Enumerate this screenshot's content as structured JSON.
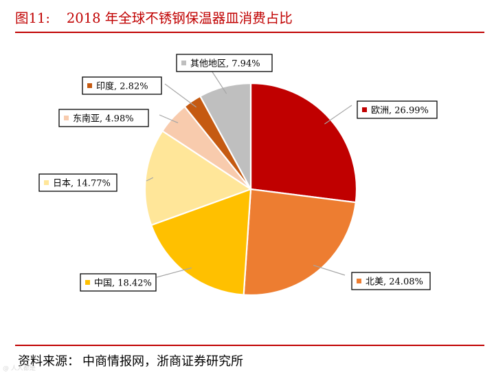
{
  "title": {
    "figure_no": "图11:",
    "text": "2018 年全球不锈钢保温器皿消费占比"
  },
  "source": {
    "prefix": "资料来源：",
    "body": "中商情报网，浙商证券研究所"
  },
  "watermark": "@ 人人都是",
  "chart_data": {
    "type": "pie",
    "title": "2018 年全球不锈钢保温器皿消费占比",
    "start_angle_deg": 0,
    "direction": "clockwise",
    "slices": [
      {
        "name": "欧洲",
        "value": 26.99,
        "label": "欧洲, 26.99%",
        "color": "#c00000"
      },
      {
        "name": "北美",
        "value": 24.08,
        "label": "北美, 24.08%",
        "color": "#ed7d31"
      },
      {
        "name": "中国",
        "value": 18.42,
        "label": "中国, 18.42%",
        "color": "#ffc000"
      },
      {
        "name": "日本",
        "value": 14.77,
        "label": "日本, 14.77%",
        "color": "#ffe699"
      },
      {
        "name": "东南亚",
        "value": 4.98,
        "label": "东南亚, 4.98%",
        "color": "#f8cbad"
      },
      {
        "name": "印度",
        "value": 2.82,
        "label": "印度, 2.82%",
        "color": "#c55a11"
      },
      {
        "name": "其他地区",
        "value": 7.94,
        "label": "其他地区, 7.94%",
        "color": "#bfbfbf"
      }
    ]
  }
}
